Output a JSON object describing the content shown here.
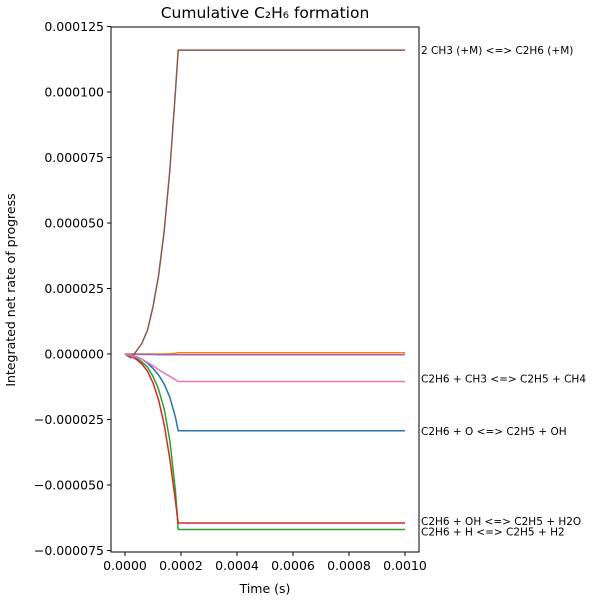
{
  "chart_data": {
    "type": "line",
    "title": "Cumulative C₂H₆ formation",
    "xlabel": "Time (s)",
    "ylabel": "Integrated net rate of progress",
    "xlim": [
      -5e-05,
      0.00105
    ],
    "ylim": [
      -7.6e-05,
      0.000125
    ],
    "xticks": [
      0,
      0.0002,
      0.0004,
      0.0006,
      0.0008,
      0.001
    ],
    "xtick_labels": [
      "0.0000",
      "0.0002",
      "0.0004",
      "0.0006",
      "0.0008",
      "0.0010"
    ],
    "yticks": [
      0.000125,
      0.0001,
      7.5e-05,
      5e-05,
      2.5e-05,
      0,
      -2.5e-05,
      -5e-05,
      -7.5e-05
    ],
    "ytick_labels": [
      "0.000125",
      "0.000100",
      "0.000075",
      "0.000050",
      "0.000025",
      "0.000000",
      "−0.000025",
      "−0.000050",
      "−0.000075"
    ],
    "grid": false,
    "x": [
      0,
      2e-05,
      4e-05,
      6e-05,
      8e-05,
      0.0001,
      0.00012,
      0.00014,
      0.00016,
      0.00018,
      0.00019,
      0.001
    ],
    "series": [
      {
        "name": "C2H6 + O <=> C2H5 + OH",
        "color": "#1f77b4",
        "values": [
          0,
          -3e-07,
          -1e-06,
          -2e-06,
          -3.5e-06,
          -5.5e-06,
          -8e-06,
          -1.15e-05,
          -1.65e-05,
          -2.4e-05,
          -2.93e-05,
          -2.93e-05
        ]
      },
      {
        "name": "",
        "color": "#ff7f0e",
        "values": [
          0,
          0,
          0,
          0,
          0,
          0,
          0,
          0,
          1e-07,
          3e-07,
          5e-07,
          5e-07
        ]
      },
      {
        "name": "C2H6 + H <=> C2H5 + H2",
        "color": "#2ca02c",
        "values": [
          0,
          -5e-07,
          -1.5e-06,
          -3e-06,
          -5e-06,
          -8.5e-06,
          -1.35e-05,
          -2.1e-05,
          -3.3e-05,
          -5.2e-05,
          -6.7e-05,
          -6.7e-05
        ]
      },
      {
        "name": "C2H6 + OH <=> C2H5 + H2O",
        "color": "#d62728",
        "values": [
          0,
          -7e-07,
          -2e-06,
          -3.8e-06,
          -6.5e-06,
          -1.1e-05,
          -1.75e-05,
          -2.7e-05,
          -4e-05,
          -5.6e-05,
          -6.45e-05,
          -6.45e-05
        ]
      },
      {
        "name": "",
        "color": "#9467bd",
        "values": [
          0,
          -1e-07,
          -1e-07,
          -2e-07,
          -2e-07,
          -2e-07,
          -3e-07,
          -3e-07,
          -3e-07,
          -3e-07,
          -3e-07,
          -3e-07
        ]
      },
      {
        "name": "2 CH3 (+M) <=> C2H6 (+M)",
        "color": "#8c564b",
        "values": [
          0,
          -1.5e-06,
          1e-06,
          4e-06,
          9e-06,
          1.8e-05,
          3e-05,
          4.7e-05,
          7e-05,
          0.0001,
          0.000116,
          0.000116
        ]
      },
      {
        "name": "C2H6 + CH3 <=> C2H5 + CH4",
        "color": "#e377c2",
        "values": [
          0,
          -5e-07,
          -1.2e-06,
          -2e-06,
          -3.2e-06,
          -4.5e-06,
          -6e-06,
          -7.3e-06,
          -8.5e-06,
          -9.8e-06,
          -1.05e-05,
          -1.05e-05
        ]
      }
    ],
    "annotations": [
      {
        "text": "2 CH3 (+M) <=> C2H6 (+M)",
        "series": 5
      },
      {
        "text": "C2H6 + CH3 <=> C2H5 + CH4",
        "series": 6
      },
      {
        "text": "C2H6 + O <=> C2H5 + OH",
        "series": 0
      },
      {
        "text": "C2H6 + OH <=> C2H5 + H2O",
        "series": 3
      },
      {
        "text": "C2H6 + H <=> C2H5 + H2",
        "series": 2
      }
    ]
  }
}
